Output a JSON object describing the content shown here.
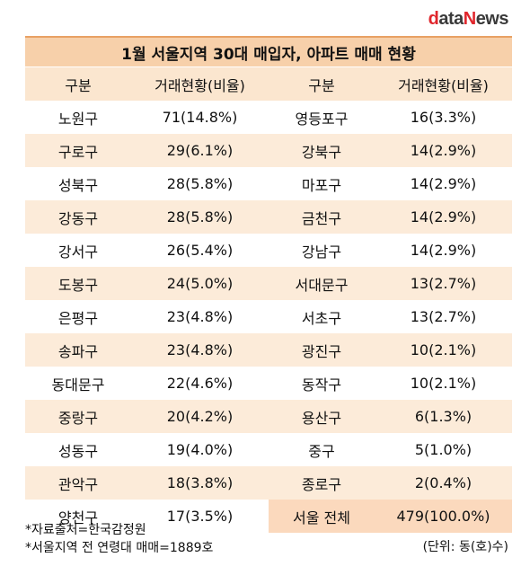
{
  "logo": {
    "d": "d",
    "mid": "ata",
    "n": "N",
    "end": "ews"
  },
  "title": "1월 서울지역 30대 매입자, 아파트 매매 현황",
  "headers": [
    "구분",
    "거래현황(비율)",
    "구분",
    "거래현황(비율)"
  ],
  "rows": [
    [
      "노원구",
      "71(14.8%)",
      "영등포구",
      "16(3.3%)"
    ],
    [
      "구로구",
      "29(6.1%)",
      "강북구",
      "14(2.9%)"
    ],
    [
      "성북구",
      "28(5.8%)",
      "마포구",
      "14(2.9%)"
    ],
    [
      "강동구",
      "28(5.8%)",
      "금천구",
      "14(2.9%)"
    ],
    [
      "강서구",
      "26(5.4%)",
      "강남구",
      "14(2.9%)"
    ],
    [
      "도봉구",
      "24(5.0%)",
      "서대문구",
      "13(2.7%)"
    ],
    [
      "은평구",
      "23(4.8%)",
      "서초구",
      "13(2.7%)"
    ],
    [
      "송파구",
      "23(4.8%)",
      "광진구",
      "10(2.1%)"
    ],
    [
      "동대문구",
      "22(4.6%)",
      "동작구",
      "10(2.1%)"
    ],
    [
      "중랑구",
      "20(4.2%)",
      "용산구",
      "6(1.3%)"
    ],
    [
      "성동구",
      "19(4.0%)",
      "중구",
      "5(1.0%)"
    ],
    [
      "관악구",
      "18(3.8%)",
      "종로구",
      "2(0.4%)"
    ],
    [
      "양천구",
      "17(3.5%)",
      "서울 전체",
      "479(100.0%)"
    ]
  ],
  "footer": {
    "source": "*자료출처=한국감정원",
    "note": "*서울지역 전 연령대 매매=1889호",
    "unit": "(단위: 동(호)수)"
  },
  "colors": {
    "title_bg": "#f7d0aa",
    "title_border": "#e8a164",
    "header_bg": "#fbe6cf",
    "alt_row_bg": "#fcebd9",
    "total_bg": "#fbd9bd",
    "logo_red": "#e0262c"
  }
}
